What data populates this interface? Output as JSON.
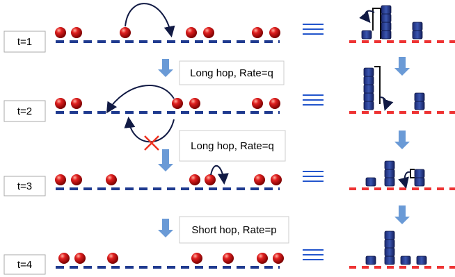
{
  "time_labels": [
    "t=1",
    "t=2",
    "t=3",
    "t=4"
  ],
  "transitions": [
    "Long hop, Rate=q",
    "Long hop, Rate=q",
    "Short hop, Rate=p"
  ]
}
